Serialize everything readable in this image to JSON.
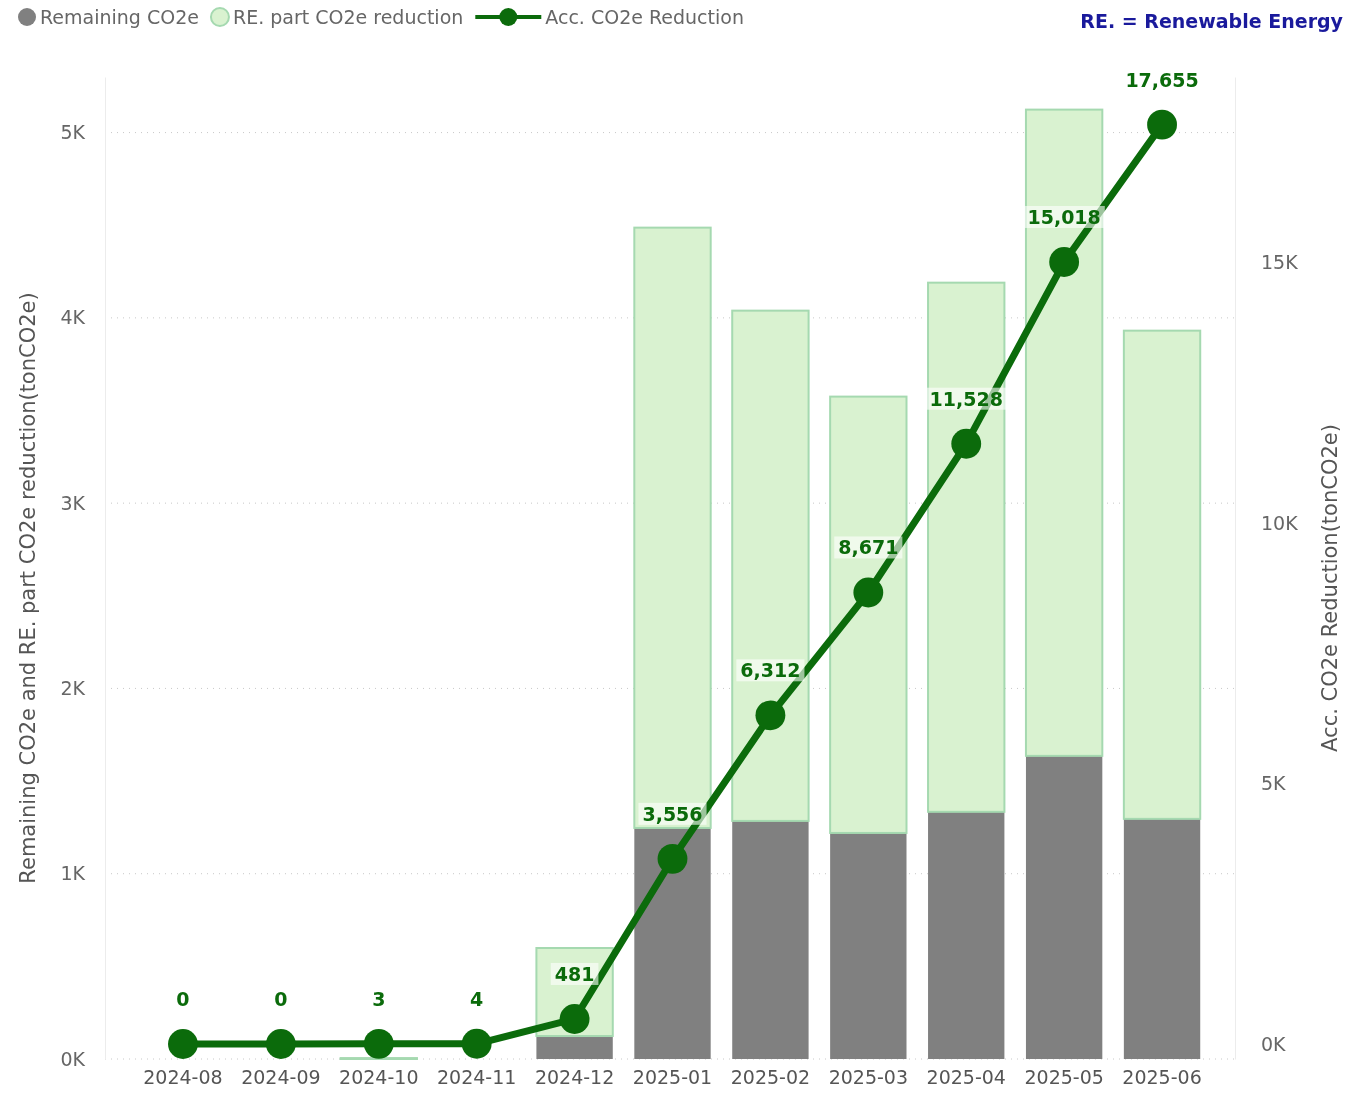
{
  "chart_data": {
    "type": "bar",
    "stacked": true,
    "ylabel": "Remaining CO2e and RE. part CO2e reduction(tonCO2e)",
    "y2label": "Acc. CO2e Reduction(tonCO2e)",
    "annotations": [
      "RE. = Renewable Energy"
    ],
    "categories": [
      "2024-08",
      "2024-09",
      "2024-10",
      "2024-11",
      "2024-12",
      "2025-01",
      "2025-02",
      "2025-03",
      "2025-04",
      "2025-05",
      "2025-06"
    ],
    "series": [
      {
        "name": "Remaining CO2e",
        "color": "#808080",
        "values": [
          0,
          0,
          0,
          0,
          124,
          1247,
          1285,
          1220,
          1334,
          1636,
          1296
        ]
      },
      {
        "name": "RE. part CO2e reduction",
        "color": "#d9f2d0",
        "values": [
          0,
          0,
          5,
          0,
          475,
          3240,
          2754,
          2355,
          2856,
          3488,
          2635
        ]
      },
      {
        "name": "Acc. CO2e Reduction",
        "type": "line",
        "axis": "y2",
        "color": "#0b6b0b",
        "values": [
          0,
          0,
          3,
          4,
          481,
          3556,
          6312,
          8671,
          11528,
          15018,
          17655
        ],
        "value_labels": [
          "0",
          "0",
          "3",
          "4",
          "481",
          "3,556",
          "6,312",
          "8,671",
          "11,528",
          "15,018",
          "17,655"
        ]
      }
    ],
    "ylim": [
      0,
      5300
    ],
    "yticks": [
      {
        "value": 0,
        "label": "0K"
      },
      {
        "value": 1000,
        "label": "1K"
      },
      {
        "value": 2000,
        "label": "2K"
      },
      {
        "value": 3000,
        "label": "3K"
      },
      {
        "value": 4000,
        "label": "4K"
      },
      {
        "value": 5000,
        "label": "5K"
      }
    ],
    "y2lim": [
      -288,
      18570
    ],
    "y2ticks": [
      {
        "value": 0,
        "label": "0K"
      },
      {
        "value": 5000,
        "label": "5K"
      },
      {
        "value": 10000,
        "label": "10K"
      },
      {
        "value": 15000,
        "label": "15K"
      }
    ],
    "grid": "y",
    "legend": "top left",
    "marker": "circle",
    "line_style": "solid"
  }
}
